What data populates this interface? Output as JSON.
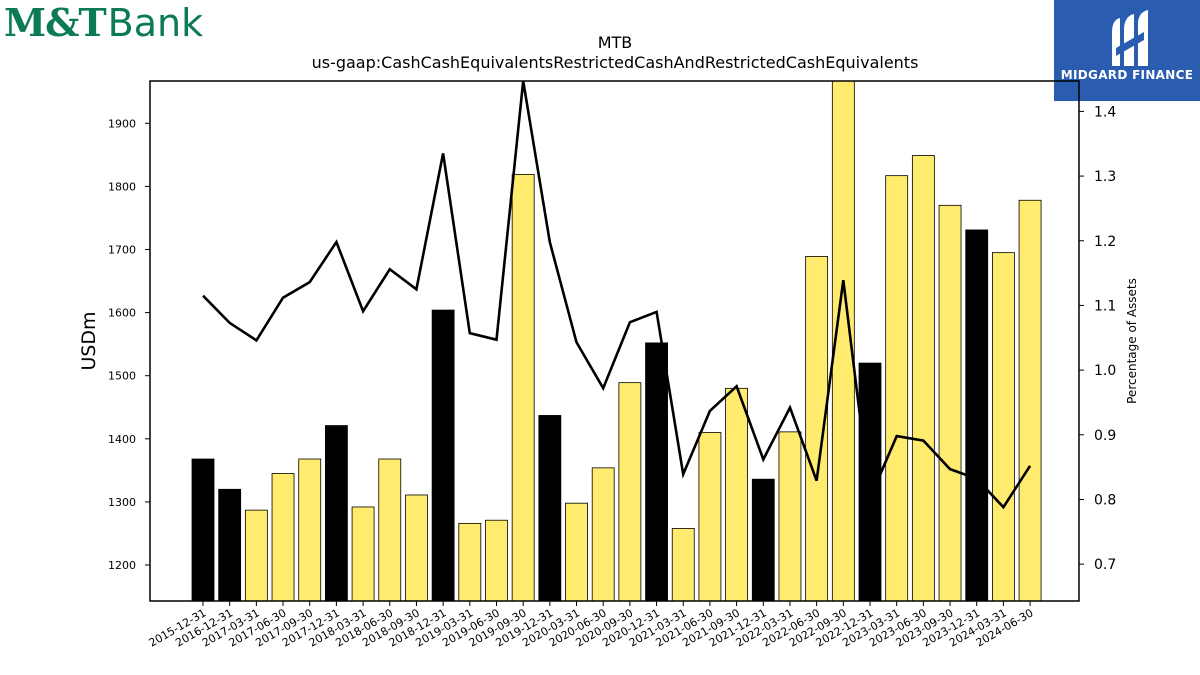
{
  "logos": {
    "left": {
      "mark": "M&T",
      "word": "Bank",
      "color": "#0b7a55"
    },
    "right": {
      "text": "MIDGARD FINANCE",
      "icon": "midgard-m-logo-icon",
      "color": "#2a5db0"
    }
  },
  "chart_data": {
    "type": "bar",
    "title": "MTB",
    "subtitle": "us-gaap:CashCashEquivalentsRestrictedCashAndRestrictedCashEquivalents",
    "ylabel": "USDm",
    "y2label": "Percentage of Assets",
    "ylim": [
      1143,
      1967
    ],
    "y2lim": [
      0.643,
      1.447
    ],
    "yticks": [
      1200,
      1300,
      1400,
      1500,
      1600,
      1700,
      1800,
      1900
    ],
    "y2ticks": [
      0.7,
      0.8,
      0.9,
      1.0,
      1.1,
      1.2,
      1.3,
      1.4
    ],
    "categories": [
      "2015-12-31",
      "2016-12-31",
      "2017-03-31",
      "2017-06-30",
      "2017-09-30",
      "2017-12-31",
      "2018-03-31",
      "2018-06-30",
      "2018-09-30",
      "2018-12-31",
      "2019-03-31",
      "2019-06-30",
      "2019-09-30",
      "2019-12-31",
      "2020-03-31",
      "2020-06-30",
      "2020-09-30",
      "2020-12-31",
      "2021-03-31",
      "2021-06-30",
      "2021-09-30",
      "2021-12-31",
      "2022-03-31",
      "2022-06-30",
      "2022-09-30",
      "2022-12-31",
      "2023-03-31",
      "2023-06-30",
      "2023-09-30",
      "2023-12-31",
      "2024-03-31",
      "2024-06-30"
    ],
    "series": [
      {
        "type": "bar",
        "values": [
          1368,
          1320,
          1287,
          1345,
          1368,
          1421,
          1292,
          1368,
          1311,
          1604,
          1266,
          1271,
          1819,
          1437,
          1298,
          1354,
          1489,
          1552,
          1258,
          1410,
          1480,
          1336,
          1411,
          1689,
          1967,
          1520,
          1817,
          1849,
          1770,
          1731,
          1695,
          1778
        ],
        "colors": [
          "#000000",
          "#000000",
          "#ffec6e",
          "#ffec6e",
          "#ffec6e",
          "#000000",
          "#ffec6e",
          "#ffec6e",
          "#ffec6e",
          "#000000",
          "#ffec6e",
          "#ffec6e",
          "#ffec6e",
          "#000000",
          "#ffec6e",
          "#ffec6e",
          "#ffec6e",
          "#000000",
          "#ffec6e",
          "#ffec6e",
          "#ffec6e",
          "#000000",
          "#ffec6e",
          "#ffec6e",
          "#ffec6e",
          "#000000",
          "#ffec6e",
          "#ffec6e",
          "#ffec6e",
          "#000000",
          "#ffec6e",
          "#ffec6e"
        ]
      },
      {
        "type": "line",
        "axis": "right",
        "color": "#000000",
        "values": [
          1.115,
          1.073,
          1.046,
          1.112,
          1.136,
          1.198,
          1.091,
          1.156,
          1.125,
          1.335,
          1.057,
          1.047,
          1.447,
          1.198,
          1.043,
          0.972,
          1.074,
          1.09,
          0.839,
          0.937,
          0.975,
          0.862,
          0.942,
          0.829,
          1.139,
          0.802,
          0.898,
          0.891,
          0.847,
          0.832,
          0.788,
          0.852
        ]
      }
    ],
    "bar_colors": {
      "year_end": "#000000",
      "quarter": "#ffec6e"
    },
    "grid": false,
    "legend": "none"
  }
}
